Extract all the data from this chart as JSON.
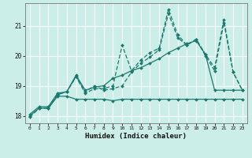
{
  "xlabel": "Humidex (Indice chaleur)",
  "bg_color": "#cceee8",
  "grid_color": "#aaddcc",
  "line_color": "#1a7a6e",
  "ylim": [
    17.75,
    21.75
  ],
  "xlim": [
    -0.5,
    23.5
  ],
  "yticks": [
    18,
    19,
    20,
    21
  ],
  "xticks": [
    0,
    1,
    2,
    3,
    4,
    5,
    6,
    7,
    8,
    9,
    10,
    11,
    12,
    13,
    14,
    15,
    16,
    17,
    18,
    19,
    20,
    21,
    22,
    23
  ],
  "line1_x": [
    0,
    1,
    2,
    3,
    4,
    5,
    6,
    7,
    8,
    9,
    10,
    11,
    12,
    13,
    14,
    15,
    16,
    17,
    18,
    19,
    20,
    21,
    22,
    23
  ],
  "line1_y": [
    17.95,
    18.25,
    18.25,
    18.7,
    18.8,
    19.3,
    18.75,
    18.9,
    18.9,
    19.0,
    20.35,
    19.5,
    19.85,
    20.1,
    20.25,
    21.55,
    20.7,
    20.35,
    20.55,
    20.05,
    19.6,
    21.2,
    19.45,
    18.85
  ],
  "line2_x": [
    0,
    1,
    2,
    3,
    4,
    5,
    6,
    7,
    8,
    9,
    10,
    11,
    12,
    13,
    14,
    15,
    16,
    17,
    18,
    19,
    20,
    21,
    22,
    23
  ],
  "line2_y": [
    18.05,
    18.3,
    18.3,
    18.75,
    18.8,
    19.35,
    18.85,
    18.95,
    19.0,
    19.25,
    19.35,
    19.5,
    19.6,
    19.75,
    19.9,
    20.1,
    20.25,
    20.4,
    20.5,
    20.05,
    18.85,
    18.85,
    18.85,
    18.85
  ],
  "line3_x": [
    2,
    3,
    4,
    5,
    6,
    7,
    8,
    9,
    10,
    11,
    12,
    13,
    14,
    15,
    16,
    17,
    18,
    19,
    20,
    21,
    22,
    23
  ],
  "line3_y": [
    18.25,
    18.7,
    18.8,
    19.3,
    18.8,
    19.0,
    18.85,
    18.9,
    19.0,
    19.45,
    19.75,
    19.95,
    20.2,
    21.4,
    20.6,
    20.35,
    20.55,
    20.0,
    19.5,
    21.1,
    19.45,
    18.85
  ],
  "line4_x": [
    0,
    1,
    2,
    3,
    4,
    5,
    6,
    7,
    8,
    9,
    10,
    11,
    12,
    13,
    14,
    15,
    16,
    17,
    18,
    19,
    20,
    21,
    22,
    23
  ],
  "line4_y": [
    18.0,
    18.25,
    18.25,
    18.65,
    18.65,
    18.55,
    18.55,
    18.55,
    18.55,
    18.5,
    18.55,
    18.55,
    18.55,
    18.55,
    18.55,
    18.55,
    18.55,
    18.55,
    18.55,
    18.55,
    18.55,
    18.55,
    18.55,
    18.55
  ]
}
